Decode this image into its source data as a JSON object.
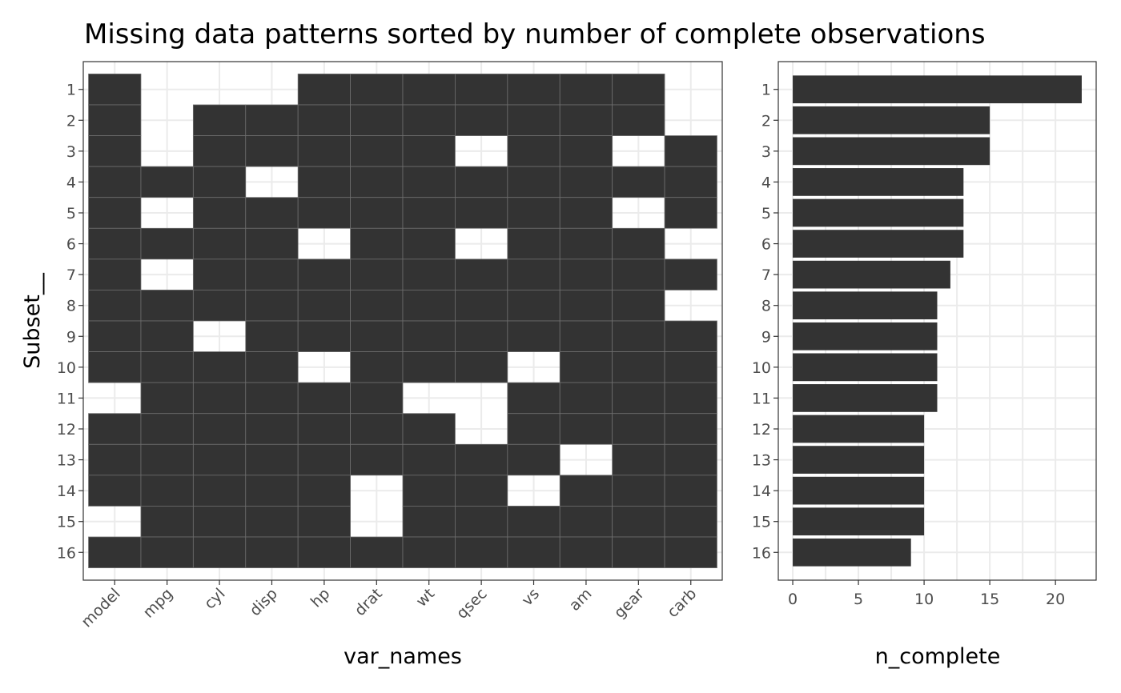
{
  "chart_data": [
    {
      "type": "heatmap",
      "title": "Missing data patterns sorted by number of complete observations",
      "xlabel": "var_names",
      "ylabel": "Subset__",
      "x_categories": [
        "model",
        "mpg",
        "cyl",
        "disp",
        "hp",
        "drat",
        "wt",
        "qsec",
        "vs",
        "am",
        "gear",
        "carb"
      ],
      "y_categories": [
        "1",
        "2",
        "3",
        "4",
        "5",
        "6",
        "7",
        "8",
        "9",
        "10",
        "11",
        "12",
        "13",
        "14",
        "15",
        "16"
      ],
      "present": [
        [
          1,
          0,
          0,
          0,
          1,
          1,
          1,
          1,
          1,
          1,
          1,
          0
        ],
        [
          1,
          0,
          1,
          1,
          1,
          1,
          1,
          1,
          1,
          1,
          1,
          0
        ],
        [
          1,
          0,
          1,
          1,
          1,
          1,
          1,
          0,
          1,
          1,
          0,
          1
        ],
        [
          1,
          1,
          1,
          0,
          1,
          1,
          1,
          1,
          1,
          1,
          1,
          1
        ],
        [
          1,
          0,
          1,
          1,
          1,
          1,
          1,
          1,
          1,
          1,
          0,
          1
        ],
        [
          1,
          1,
          1,
          1,
          0,
          1,
          1,
          0,
          1,
          1,
          1,
          0
        ],
        [
          1,
          0,
          1,
          1,
          1,
          1,
          1,
          1,
          1,
          1,
          1,
          1
        ],
        [
          1,
          1,
          1,
          1,
          1,
          1,
          1,
          1,
          1,
          1,
          1,
          0
        ],
        [
          1,
          1,
          0,
          1,
          1,
          1,
          1,
          1,
          1,
          1,
          1,
          1
        ],
        [
          1,
          1,
          1,
          1,
          0,
          1,
          1,
          1,
          0,
          1,
          1,
          1
        ],
        [
          0,
          1,
          1,
          1,
          1,
          1,
          0,
          0,
          1,
          1,
          1,
          1
        ],
        [
          1,
          1,
          1,
          1,
          1,
          1,
          1,
          0,
          1,
          1,
          1,
          1
        ],
        [
          1,
          1,
          1,
          1,
          1,
          1,
          1,
          1,
          1,
          0,
          1,
          1
        ],
        [
          1,
          1,
          1,
          1,
          1,
          0,
          1,
          1,
          0,
          1,
          1,
          1
        ],
        [
          0,
          1,
          1,
          1,
          1,
          0,
          1,
          1,
          1,
          1,
          1,
          1
        ],
        [
          1,
          1,
          1,
          1,
          1,
          1,
          1,
          1,
          1,
          1,
          1,
          1
        ]
      ],
      "colors": {
        "present": "#333333",
        "missing": "#ffffff"
      }
    },
    {
      "type": "bar",
      "orientation": "horizontal",
      "xlabel": "n_complete",
      "categories": [
        "1",
        "2",
        "3",
        "4",
        "5",
        "6",
        "7",
        "8",
        "9",
        "10",
        "11",
        "12",
        "13",
        "14",
        "15",
        "16"
      ],
      "values": [
        22,
        15,
        15,
        13,
        13,
        13,
        12,
        11,
        11,
        11,
        11,
        10,
        10,
        10,
        10,
        9
      ],
      "xlim": [
        -1.1,
        23.1
      ],
      "xticks": [
        0,
        5,
        10,
        15,
        20
      ],
      "bar_color": "#333333"
    }
  ]
}
